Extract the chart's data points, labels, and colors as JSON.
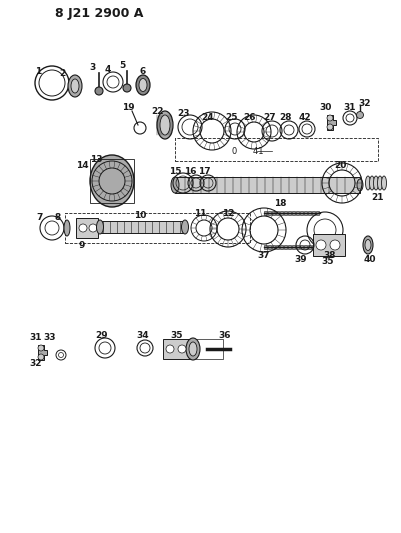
{
  "title": "8 J21 2900 A",
  "bg_color": "#ffffff",
  "fg_color": "#1a1a1a",
  "fig_width": 4.01,
  "fig_height": 5.33,
  "dpi": 100
}
